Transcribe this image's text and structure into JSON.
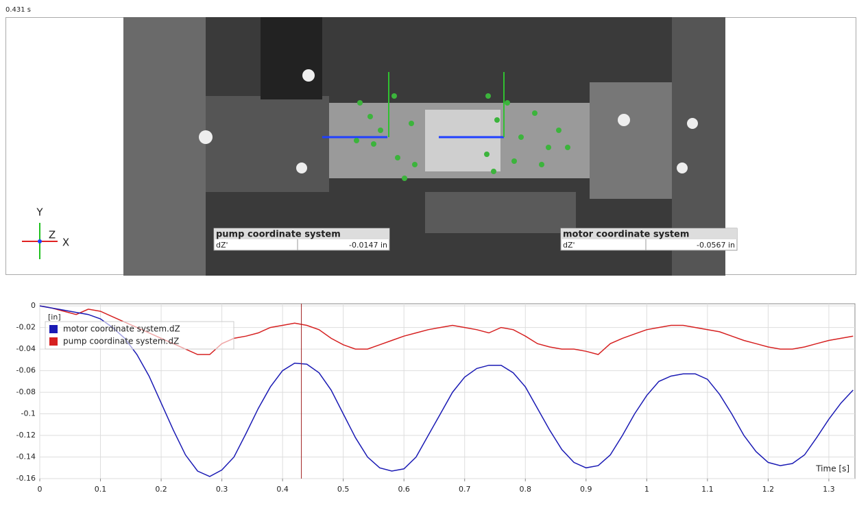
{
  "timestamp": "0.431 s",
  "triad": {
    "y": "Y",
    "z": "Z",
    "x": "X"
  },
  "overlays": [
    {
      "title": "pump coordinate system",
      "label": "dZ'",
      "value": "-0.0147 in"
    },
    {
      "title": "motor coordinate system",
      "label": "dZ'",
      "value": "-0.0567 in"
    }
  ],
  "chart_data": {
    "type": "line",
    "y_unit": "[in]",
    "x_label": "Time [s]",
    "x": [
      0,
      0.02,
      0.04,
      0.06,
      0.08,
      0.1,
      0.12,
      0.14,
      0.16,
      0.18,
      0.2,
      0.22,
      0.24,
      0.26,
      0.28,
      0.3,
      0.32,
      0.34,
      0.36,
      0.38,
      0.4,
      0.42,
      0.44,
      0.46,
      0.48,
      0.5,
      0.52,
      0.54,
      0.56,
      0.58,
      0.6,
      0.62,
      0.64,
      0.66,
      0.68,
      0.7,
      0.72,
      0.74,
      0.76,
      0.78,
      0.8,
      0.82,
      0.84,
      0.86,
      0.88,
      0.9,
      0.92,
      0.94,
      0.96,
      0.98,
      1,
      1.02,
      1.04,
      1.06,
      1.08,
      1.1,
      1.12,
      1.14,
      1.16,
      1.18,
      1.2,
      1.22,
      1.24,
      1.26,
      1.28,
      1.3,
      1.32,
      1.34
    ],
    "series": [
      {
        "name": "motor coordinate system.dZ",
        "color": "#1a1ab4",
        "values": [
          0,
          -0.002,
          -0.004,
          -0.006,
          -0.008,
          -0.012,
          -0.02,
          -0.03,
          -0.045,
          -0.065,
          -0.09,
          -0.115,
          -0.138,
          -0.153,
          -0.158,
          -0.152,
          -0.14,
          -0.118,
          -0.095,
          -0.075,
          -0.06,
          -0.053,
          -0.054,
          -0.062,
          -0.078,
          -0.1,
          -0.122,
          -0.14,
          -0.15,
          -0.153,
          -0.151,
          -0.14,
          -0.12,
          -0.1,
          -0.08,
          -0.066,
          -0.058,
          -0.055,
          -0.055,
          -0.062,
          -0.075,
          -0.095,
          -0.115,
          -0.133,
          -0.145,
          -0.15,
          -0.148,
          -0.138,
          -0.12,
          -0.1,
          -0.083,
          -0.07,
          -0.065,
          -0.063,
          -0.063,
          -0.068,
          -0.082,
          -0.1,
          -0.12,
          -0.135,
          -0.145,
          -0.148,
          -0.146,
          -0.138,
          -0.122,
          -0.105,
          -0.09,
          -0.078
        ]
      },
      {
        "name": "pump coordinate system.dZ",
        "color": "#d62020",
        "values": [
          0,
          -0.002,
          -0.005,
          -0.008,
          -0.003,
          -0.005,
          -0.01,
          -0.015,
          -0.02,
          -0.025,
          -0.03,
          -0.035,
          -0.04,
          -0.045,
          -0.045,
          -0.035,
          -0.03,
          -0.028,
          -0.025,
          -0.02,
          -0.018,
          -0.016,
          -0.018,
          -0.022,
          -0.03,
          -0.036,
          -0.04,
          -0.04,
          -0.036,
          -0.032,
          -0.028,
          -0.025,
          -0.022,
          -0.02,
          -0.018,
          -0.02,
          -0.022,
          -0.025,
          -0.02,
          -0.022,
          -0.028,
          -0.035,
          -0.038,
          -0.04,
          -0.04,
          -0.042,
          -0.045,
          -0.035,
          -0.03,
          -0.026,
          -0.022,
          -0.02,
          -0.018,
          -0.018,
          -0.02,
          -0.022,
          -0.024,
          -0.028,
          -0.032,
          -0.035,
          -0.038,
          -0.04,
          -0.04,
          -0.038,
          -0.035,
          -0.032,
          -0.03,
          -0.028
        ]
      }
    ],
    "cursor": 0.431,
    "xlim": [
      0,
      1.343
    ],
    "ylim": [
      -0.16,
      0.002
    ],
    "xticks": [
      0,
      0.1,
      0.2,
      0.3,
      0.4,
      0.5,
      0.6,
      0.7,
      0.8,
      0.9,
      1,
      1.1,
      1.2,
      1.3
    ],
    "yticks": [
      0,
      -0.02,
      -0.04,
      -0.06,
      -0.08,
      -0.1,
      -0.12,
      -0.14,
      -0.16
    ],
    "grid": true,
    "legend": "upper-left"
  }
}
